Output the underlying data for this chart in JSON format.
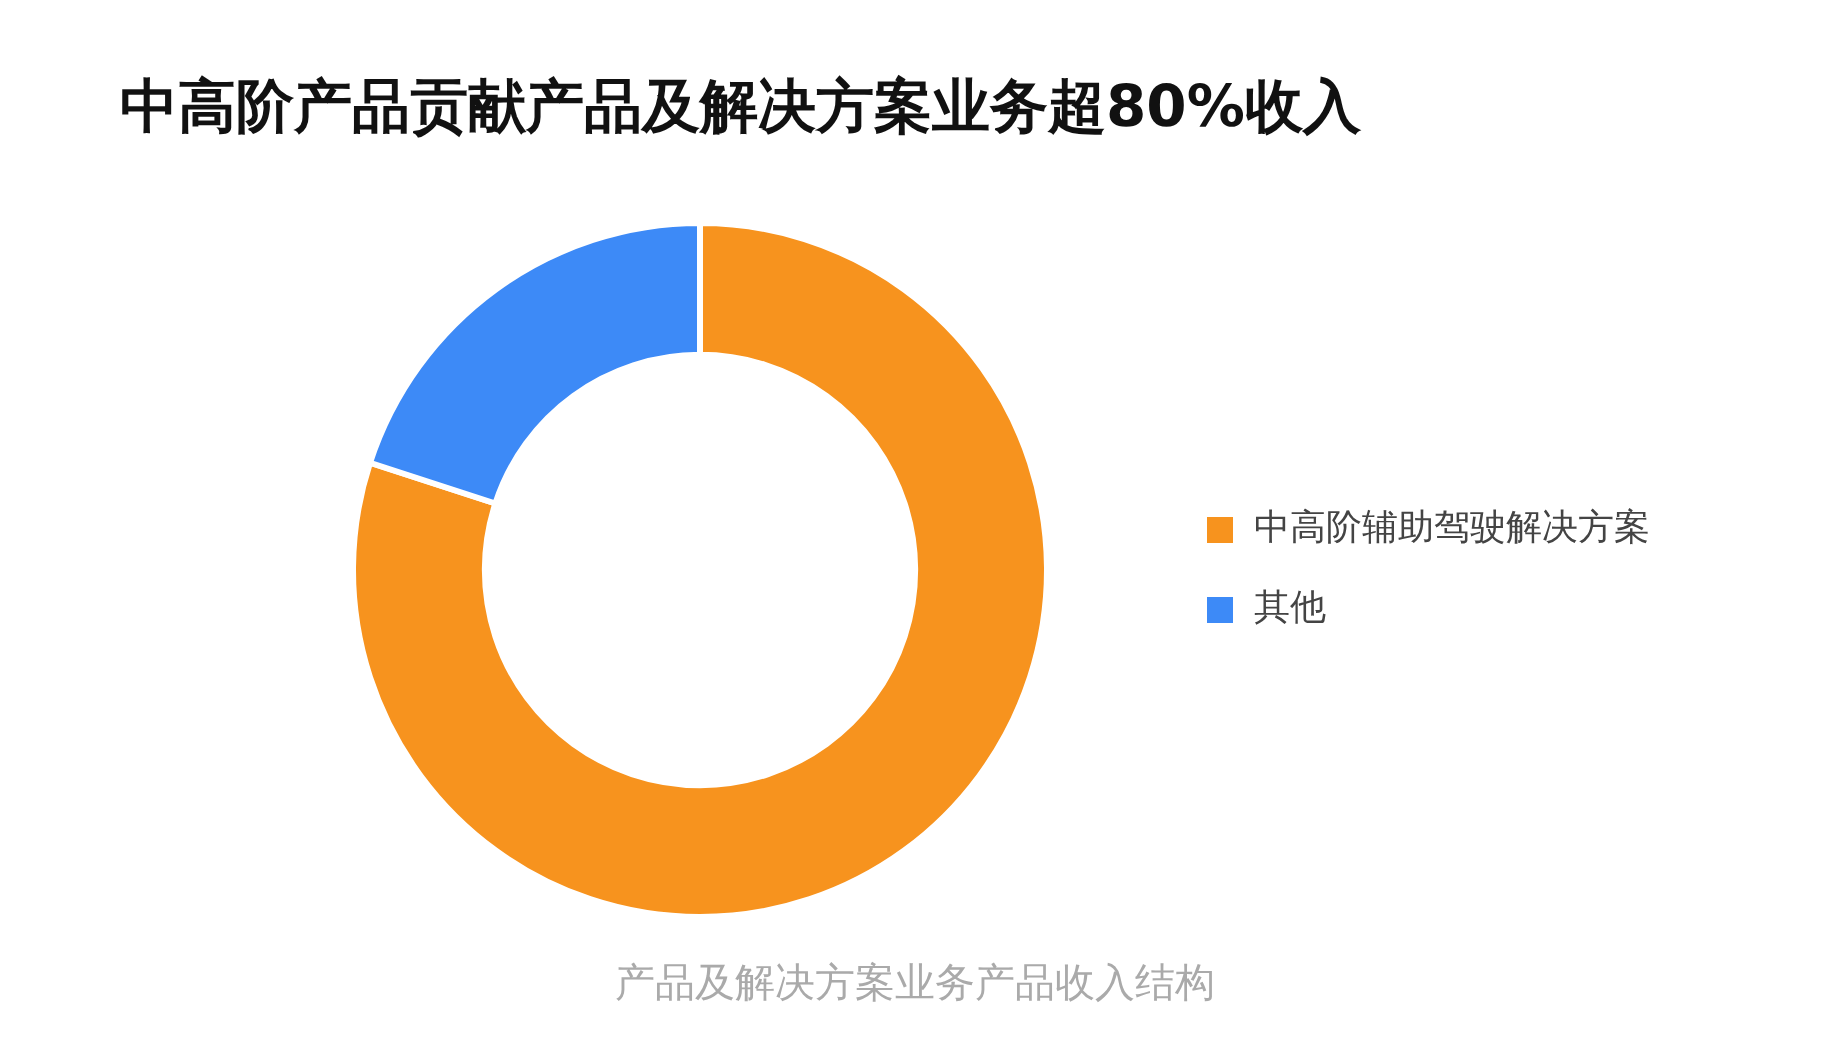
{
  "chart_data": {
    "type": "donut",
    "title": "中高阶产品贡献产品及解决方案业务超80%收入",
    "categories": [
      "中高阶辅助驾驶解决方案",
      "其他"
    ],
    "values": [
      80,
      20
    ],
    "colors": [
      "#f7931e",
      "#3d8af7"
    ],
    "legend": "right",
    "annotations": [
      "产品及解决方案业务产品收入结构"
    ]
  }
}
